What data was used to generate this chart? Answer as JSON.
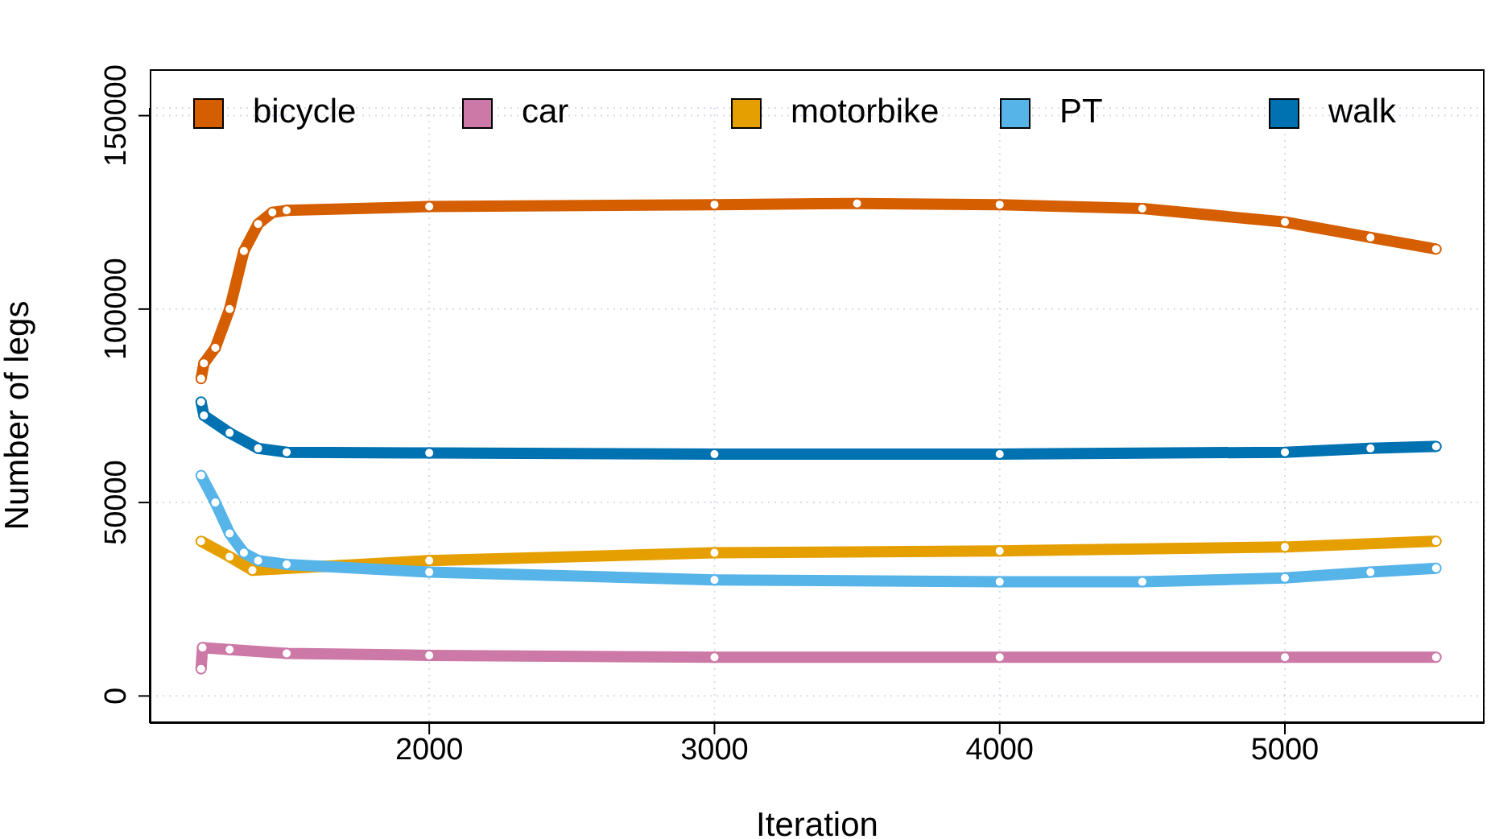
{
  "chart_data": {
    "type": "line",
    "xlabel": "Iteration",
    "ylabel": "Number of legs",
    "xlim": [
      1020,
      5700
    ],
    "ylim": [
      -7000,
      152000
    ],
    "xticks": [
      2000,
      3000,
      4000,
      5000
    ],
    "yticks": [
      0,
      50000,
      100000,
      150000
    ],
    "grid": true,
    "legend": "top",
    "marker": "circle",
    "line_style": "solid",
    "series": [
      {
        "name": "bicycle",
        "color": "#d55e00",
        "x": [
          1200,
          1210,
          1250,
          1300,
          1350,
          1400,
          1450,
          1500,
          2000,
          3000,
          3500,
          4000,
          4500,
          5000,
          5300,
          5530
        ],
        "values": [
          82000,
          86000,
          90000,
          100000,
          115000,
          122000,
          125000,
          125500,
          126500,
          127000,
          127300,
          127000,
          126000,
          122500,
          118500,
          115500
        ]
      },
      {
        "name": "car",
        "color": "#cc79a7",
        "x": [
          1200,
          1205,
          1300,
          1500,
          2000,
          3000,
          4000,
          5000,
          5530
        ],
        "values": [
          7000,
          12500,
          12000,
          11000,
          10500,
          10000,
          10000,
          10000,
          10000
        ]
      },
      {
        "name": "motorbike",
        "color": "#e69f00",
        "x": [
          1200,
          1300,
          1380,
          2000,
          3000,
          4000,
          5000,
          5530
        ],
        "values": [
          40000,
          36000,
          32500,
          35000,
          37000,
          37500,
          38500,
          40000
        ]
      },
      {
        "name": "PT",
        "color": "#56b4e9",
        "x": [
          1200,
          1250,
          1300,
          1350,
          1400,
          1500,
          2000,
          3000,
          4000,
          4500,
          5000,
          5300,
          5530
        ],
        "values": [
          57000,
          50000,
          42000,
          37000,
          35000,
          34000,
          32000,
          30000,
          29500,
          29500,
          30500,
          32000,
          33000
        ]
      },
      {
        "name": "walk",
        "color": "#0072b2",
        "x": [
          1200,
          1210,
          1300,
          1400,
          1500,
          2000,
          3000,
          4000,
          5000,
          5300,
          5530
        ],
        "values": [
          76000,
          72500,
          68000,
          64000,
          63000,
          62800,
          62500,
          62500,
          63000,
          64000,
          64500
        ]
      }
    ]
  }
}
